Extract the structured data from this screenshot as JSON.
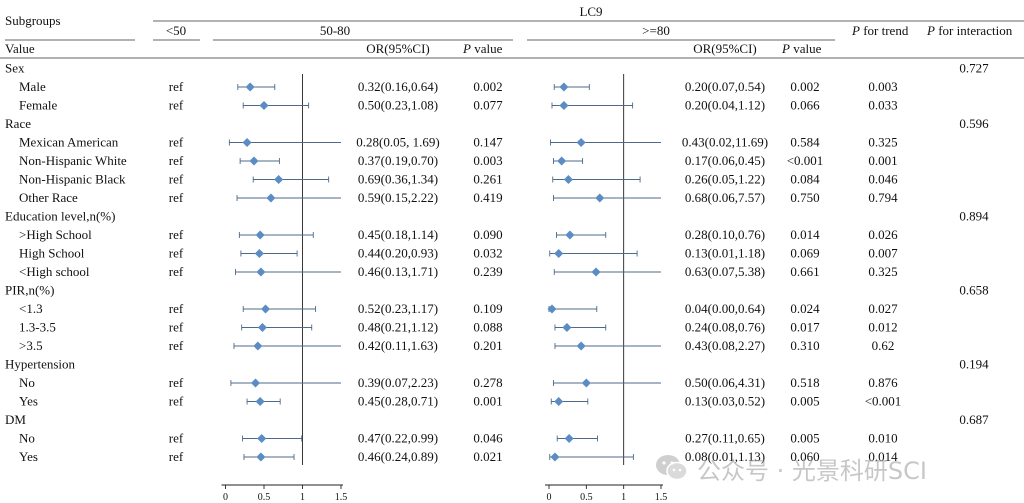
{
  "chart_data": {
    "type": "table",
    "header": {
      "group_label": "LC9",
      "subgroups": "Subgroups",
      "value": "Value",
      "lt50": "<50",
      "mid": "50-80",
      "high": ">=80",
      "or_ci": "OR(95%CI)",
      "p_italic": "P",
      "p_rest": " value",
      "trend_rest": " for trend",
      "inter_rest": " for interaction"
    },
    "x_axis": {
      "ticks": [
        0,
        0.5,
        1,
        1.5
      ],
      "tick_labels": [
        "0",
        "0.5",
        "1",
        "1.5"
      ],
      "xlim": [
        0,
        1.5
      ]
    },
    "rows": [
      {
        "label": "Sex",
        "header": true,
        "p_interaction": "0.727"
      },
      {
        "label": "Male",
        "ref": "ref",
        "mid": {
          "or": 0.32,
          "lo": 0.16,
          "hi": 0.64,
          "text": "0.32(0.16,0.64)",
          "p": "0.002"
        },
        "high": {
          "or": 0.2,
          "lo": 0.07,
          "hi": 0.54,
          "text": "0.20(0.07,0.54)",
          "p": "0.002"
        },
        "p_trend": "0.003"
      },
      {
        "label": "Female",
        "ref": "ref",
        "mid": {
          "or": 0.5,
          "lo": 0.23,
          "hi": 1.08,
          "text": "0.50(0.23,1.08)",
          "p": "0.077"
        },
        "high": {
          "or": 0.2,
          "lo": 0.04,
          "hi": 1.12,
          "text": "0.20(0.04,1.12)",
          "p": "0.066"
        },
        "p_trend": "0.033"
      },
      {
        "label": "Race",
        "header": true,
        "p_interaction": "0.596"
      },
      {
        "label": "Mexican American",
        "ref": "ref",
        "mid": {
          "or": 0.28,
          "lo": 0.05,
          "hi": 1.69,
          "text": "0.28(0.05, 1.69)",
          "p": "0.147"
        },
        "high": {
          "or": 0.43,
          "lo": 0.02,
          "hi": 11.69,
          "text": "0.43(0.02,11.69)",
          "p": "0.584"
        },
        "p_trend": "0.325"
      },
      {
        "label": "Non-Hispanic White",
        "ref": "ref",
        "mid": {
          "or": 0.37,
          "lo": 0.19,
          "hi": 0.7,
          "text": "0.37(0.19,0.70)",
          "p": "0.003"
        },
        "high": {
          "or": 0.17,
          "lo": 0.06,
          "hi": 0.45,
          "text": "0.17(0.06,0.45)",
          "p": "<0.001"
        },
        "p_trend": "0.001"
      },
      {
        "label": "Non-Hispanic Black",
        "ref": "ref",
        "mid": {
          "or": 0.69,
          "lo": 0.36,
          "hi": 1.34,
          "text": "0.69(0.36,1.34)",
          "p": "0.261"
        },
        "high": {
          "or": 0.26,
          "lo": 0.05,
          "hi": 1.22,
          "text": "0.26(0.05,1.22)",
          "p": "0.084"
        },
        "p_trend": "0.046"
      },
      {
        "label": "Other Race",
        "ref": "ref",
        "mid": {
          "or": 0.59,
          "lo": 0.15,
          "hi": 2.22,
          "text": "0.59(0.15,2.22)",
          "p": "0.419"
        },
        "high": {
          "or": 0.68,
          "lo": 0.06,
          "hi": 7.57,
          "text": "0.68(0.06,7.57)",
          "p": "0.750"
        },
        "p_trend": "0.794"
      },
      {
        "label": "Education level,n(%)",
        "header": true,
        "p_interaction": "0.894"
      },
      {
        "label": ">High School",
        "ref": "ref",
        "mid": {
          "or": 0.45,
          "lo": 0.18,
          "hi": 1.14,
          "text": "0.45(0.18,1.14)",
          "p": "0.090"
        },
        "high": {
          "or": 0.28,
          "lo": 0.1,
          "hi": 0.76,
          "text": "0.28(0.10,0.76)",
          "p": "0.014"
        },
        "p_trend": "0.026"
      },
      {
        "label": "High School",
        "ref": "ref",
        "mid": {
          "or": 0.44,
          "lo": 0.2,
          "hi": 0.93,
          "text": "0.44(0.20,0.93)",
          "p": "0.032"
        },
        "high": {
          "or": 0.13,
          "lo": 0.01,
          "hi": 1.18,
          "text": "0.13(0.01,1.18)",
          "p": "0.069"
        },
        "p_trend": "0.007"
      },
      {
        "label": "<High school",
        "ref": "ref",
        "mid": {
          "or": 0.46,
          "lo": 0.13,
          "hi": 1.71,
          "text": "0.46(0.13,1.71)",
          "p": "0.239"
        },
        "high": {
          "or": 0.63,
          "lo": 0.07,
          "hi": 5.38,
          "text": "0.63(0.07,5.38)",
          "p": "0.661"
        },
        "p_trend": "0.325"
      },
      {
        "label": "PIR,n(%)",
        "header": true,
        "p_interaction": "0.658"
      },
      {
        "label": "<1.3",
        "ref": "ref",
        "mid": {
          "or": 0.52,
          "lo": 0.23,
          "hi": 1.17,
          "text": "0.52(0.23,1.17)",
          "p": "0.109"
        },
        "high": {
          "or": 0.04,
          "lo": 0.0,
          "hi": 0.64,
          "text": "0.04(0.00,0.64)",
          "p": "0.024"
        },
        "p_trend": "0.027"
      },
      {
        "label": "1.3-3.5",
        "ref": "ref",
        "mid": {
          "or": 0.48,
          "lo": 0.21,
          "hi": 1.12,
          "text": "0.48(0.21,1.12)",
          "p": "0.088"
        },
        "high": {
          "or": 0.24,
          "lo": 0.08,
          "hi": 0.76,
          "text": "0.24(0.08,0.76)",
          "p": "0.017"
        },
        "p_trend": "0.012"
      },
      {
        "label": ">3.5",
        "ref": "ref",
        "mid": {
          "or": 0.42,
          "lo": 0.11,
          "hi": 1.63,
          "text": "0.42(0.11,1.63)",
          "p": "0.201"
        },
        "high": {
          "or": 0.43,
          "lo": 0.08,
          "hi": 2.27,
          "text": "0.43(0.08,2.27)",
          "p": "0.310"
        },
        "p_trend": "0.62"
      },
      {
        "label": "Hypertension",
        "header": true,
        "p_interaction": "0.194"
      },
      {
        "label": "No",
        "ref": "ref",
        "mid": {
          "or": 0.39,
          "lo": 0.07,
          "hi": 2.23,
          "text": "0.39(0.07,2.23)",
          "p": "0.278"
        },
        "high": {
          "or": 0.5,
          "lo": 0.06,
          "hi": 4.31,
          "text": "0.50(0.06,4.31)",
          "p": "0.518"
        },
        "p_trend": "0.876"
      },
      {
        "label": "Yes",
        "ref": "ref",
        "mid": {
          "or": 0.45,
          "lo": 0.28,
          "hi": 0.71,
          "text": "0.45(0.28,0.71)",
          "p": "0.001"
        },
        "high": {
          "or": 0.13,
          "lo": 0.03,
          "hi": 0.52,
          "text": "0.13(0.03,0.52)",
          "p": "0.005"
        },
        "p_trend": "<0.001"
      },
      {
        "label": "DM",
        "header": true,
        "p_interaction": "0.687"
      },
      {
        "label": "No",
        "ref": "ref",
        "mid": {
          "or": 0.47,
          "lo": 0.22,
          "hi": 0.99,
          "text": "0.47(0.22,0.99)",
          "p": "0.046"
        },
        "high": {
          "or": 0.27,
          "lo": 0.11,
          "hi": 0.65,
          "text": "0.27(0.11,0.65)",
          "p": "0.005"
        },
        "p_trend": "0.010"
      },
      {
        "label": "Yes",
        "ref": "ref",
        "mid": {
          "or": 0.46,
          "lo": 0.24,
          "hi": 0.89,
          "text": "0.46(0.24,0.89)",
          "p": "0.021"
        },
        "high": {
          "or": 0.08,
          "lo": 0.01,
          "hi": 1.13,
          "text": "0.08(0.01,1.13)",
          "p": "0.060"
        },
        "p_trend": "0.014"
      }
    ],
    "colors": {
      "marker": "#5b8cc4",
      "ci_line": "#4d6a8a",
      "rule": "#333333"
    }
  },
  "watermark": {
    "text": "公众号 · 光景科研SCI",
    "icon": "wechat-icon"
  }
}
